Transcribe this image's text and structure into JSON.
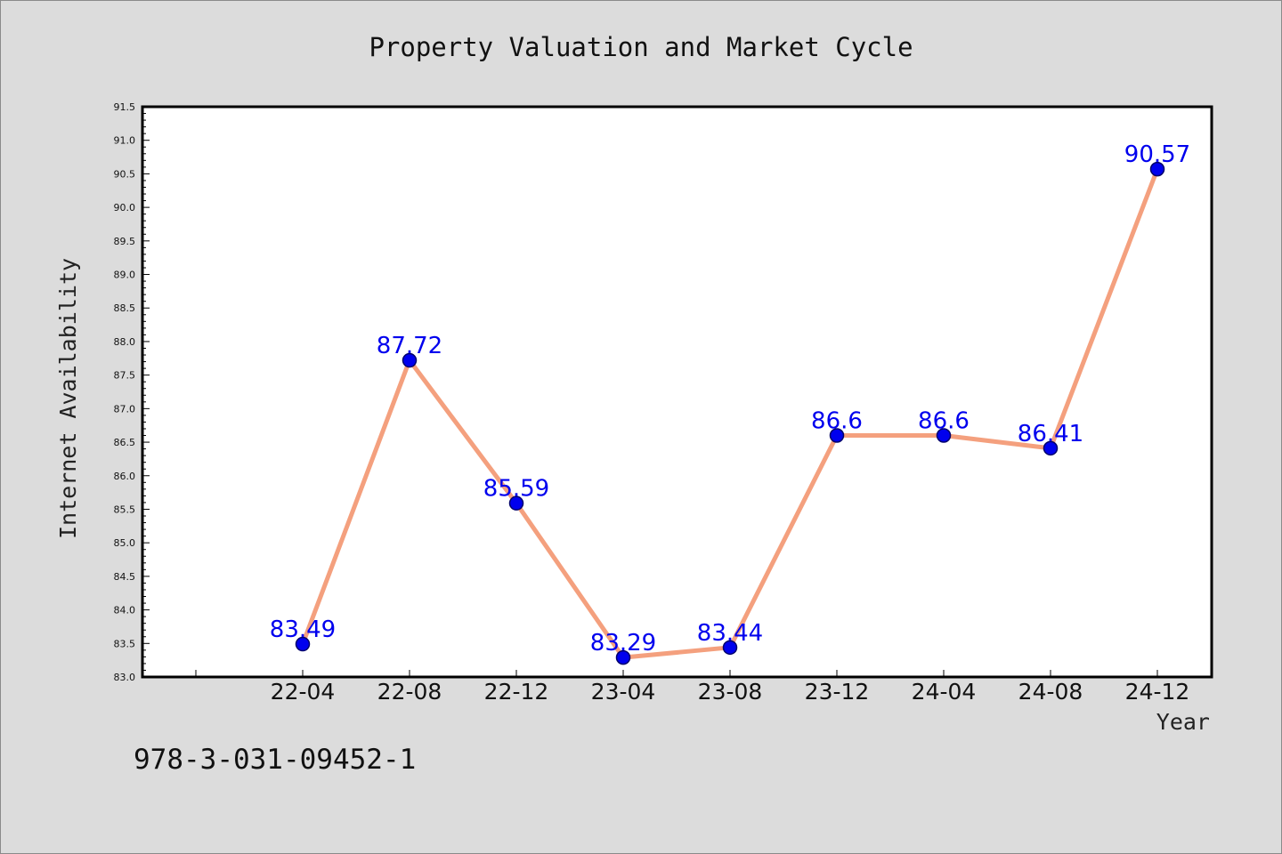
{
  "chart_data": {
    "type": "line",
    "title": "Property Valuation and Market Cycle",
    "xlabel": "Year",
    "ylabel": "Internet Availability",
    "categories": [
      "22-04",
      "22-08",
      "22-12",
      "23-04",
      "23-08",
      "23-12",
      "24-04",
      "24-08",
      "24-12"
    ],
    "series": [
      {
        "values": [
          83.49,
          87.72,
          85.59,
          83.29,
          83.44,
          86.6,
          86.6,
          86.41,
          90.57
        ],
        "labels": [
          "83.49",
          "87.72",
          "85.59",
          "83.29",
          "83.44",
          "86.6",
          "86.6",
          "86.41",
          "90.57"
        ]
      }
    ],
    "ylim": [
      83.0,
      91.5
    ],
    "yticks": [
      "83.0",
      "83.5",
      "84.0",
      "84.5",
      "85.0",
      "85.5",
      "86.0",
      "86.5",
      "87.0",
      "87.5",
      "88.0",
      "88.5",
      "89.0",
      "89.5",
      "90.0",
      "90.5",
      "91.0",
      "91.5"
    ],
    "grid": false,
    "colors": {
      "line": "#f4a07e",
      "marker_fill": "#0000ee",
      "marker_edge": "#00006b",
      "data_label": "#0000ee",
      "background": "#dcdcdc",
      "plot_background": "#ffffff"
    }
  },
  "footer": {
    "isbn": "978-3-031-09452-1"
  }
}
